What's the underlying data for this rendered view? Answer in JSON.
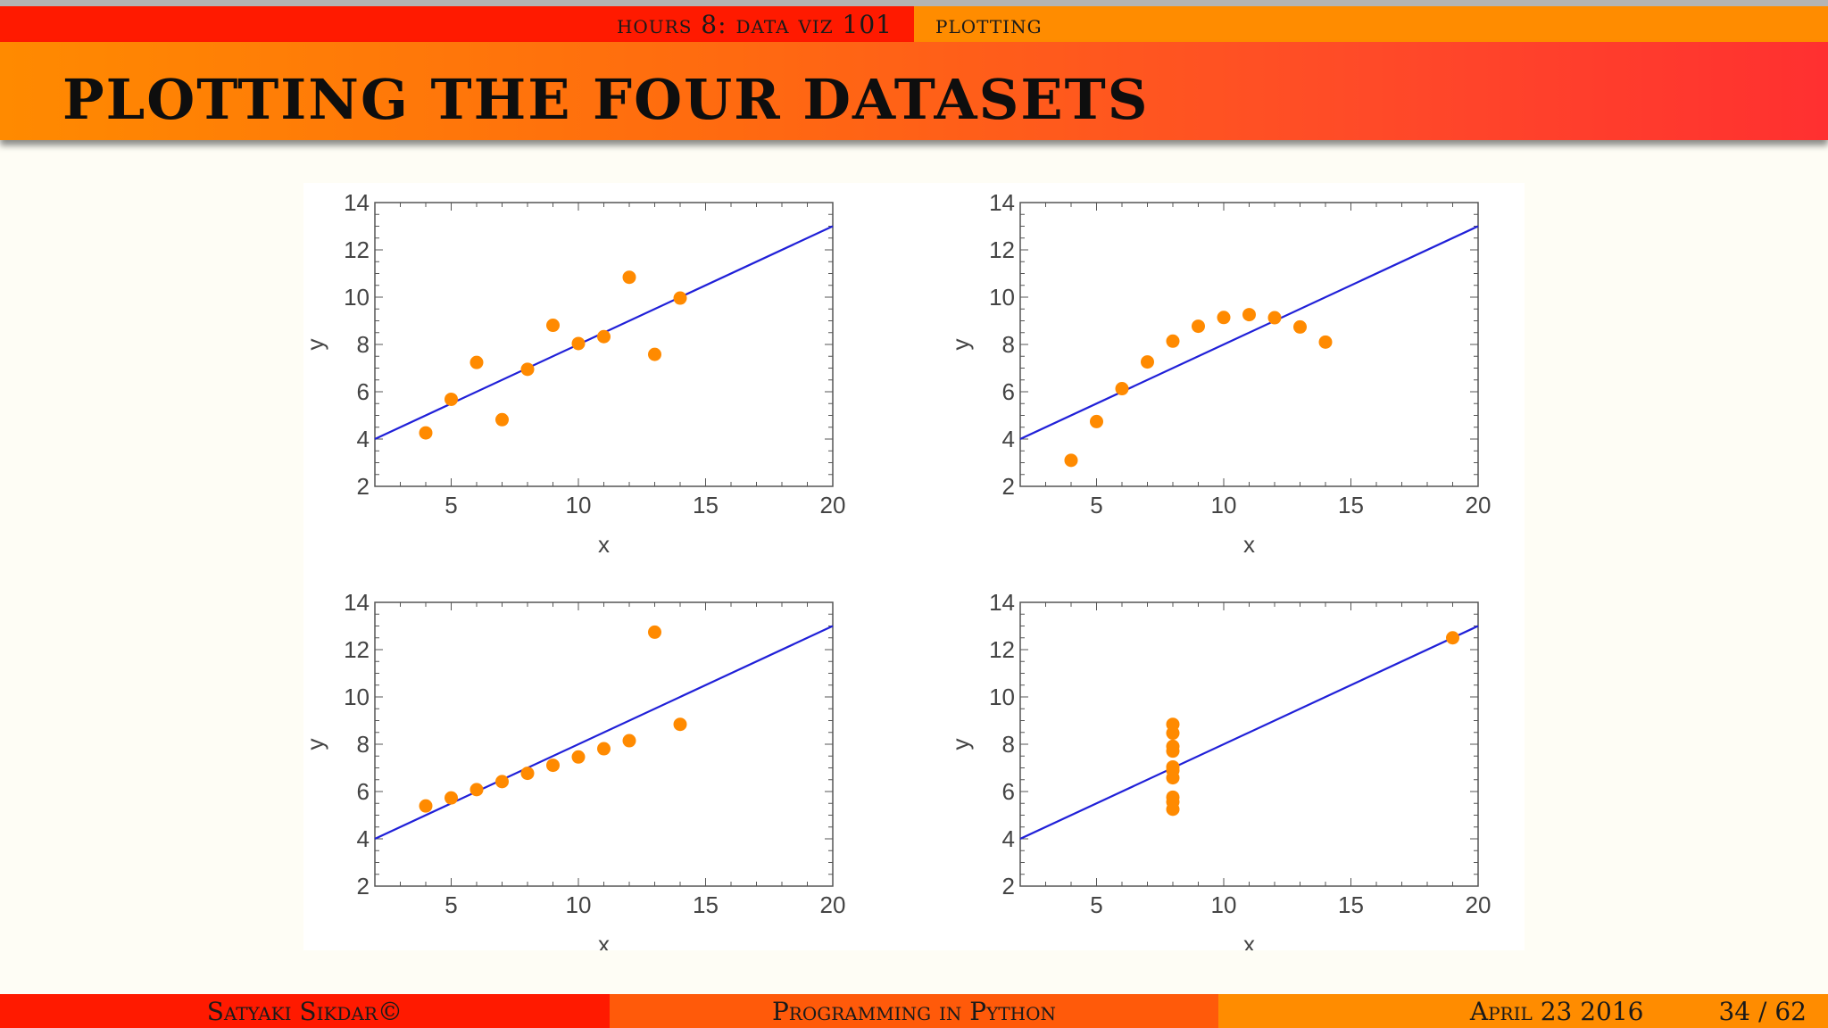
{
  "nav": {
    "left": "hours 8: data viz 101",
    "right": "plotting"
  },
  "slide": {
    "title": "PLOTTING THE FOUR DATASETS"
  },
  "footer": {
    "author": "Satyaki Sikdar©",
    "course": "Programming in Python",
    "date": "April 23 2016",
    "page": "34 / 62"
  },
  "colors": {
    "points": "#ff8a00",
    "line": "#2020d8",
    "nav_red": "#ff1a00",
    "nav_orange": "#ff8c00"
  },
  "chart_data": [
    {
      "type": "scatter",
      "xlabel": "x",
      "ylabel": "y",
      "xlim": [
        2,
        20
      ],
      "ylim": [
        2,
        14
      ],
      "xticks": [
        5,
        10,
        15,
        20
      ],
      "yticks": [
        2,
        4,
        6,
        8,
        10,
        12,
        14
      ],
      "points": [
        [
          10,
          8.04
        ],
        [
          8,
          6.95
        ],
        [
          13,
          7.58
        ],
        [
          9,
          8.81
        ],
        [
          11,
          8.33
        ],
        [
          14,
          9.96
        ],
        [
          6,
          7.24
        ],
        [
          4,
          4.26
        ],
        [
          12,
          10.84
        ],
        [
          7,
          4.82
        ],
        [
          5,
          5.68
        ]
      ],
      "fit_line": [
        [
          2,
          4.0
        ],
        [
          20,
          13.0
        ]
      ]
    },
    {
      "type": "scatter",
      "xlabel": "x",
      "ylabel": "y",
      "xlim": [
        2,
        20
      ],
      "ylim": [
        2,
        14
      ],
      "xticks": [
        5,
        10,
        15,
        20
      ],
      "yticks": [
        2,
        4,
        6,
        8,
        10,
        12,
        14
      ],
      "points": [
        [
          10,
          9.14
        ],
        [
          8,
          8.14
        ],
        [
          13,
          8.74
        ],
        [
          9,
          8.77
        ],
        [
          11,
          9.26
        ],
        [
          14,
          8.1
        ],
        [
          6,
          6.13
        ],
        [
          4,
          3.1
        ],
        [
          12,
          9.13
        ],
        [
          7,
          7.26
        ],
        [
          5,
          4.74
        ]
      ],
      "fit_line": [
        [
          2,
          4.0
        ],
        [
          20,
          13.0
        ]
      ]
    },
    {
      "type": "scatter",
      "xlabel": "x",
      "ylabel": "y",
      "xlim": [
        2,
        20
      ],
      "ylim": [
        2,
        14
      ],
      "xticks": [
        5,
        10,
        15,
        20
      ],
      "yticks": [
        2,
        4,
        6,
        8,
        10,
        12,
        14
      ],
      "points": [
        [
          10,
          7.46
        ],
        [
          8,
          6.77
        ],
        [
          13,
          12.74
        ],
        [
          9,
          7.11
        ],
        [
          11,
          7.81
        ],
        [
          14,
          8.84
        ],
        [
          6,
          6.08
        ],
        [
          4,
          5.39
        ],
        [
          12,
          8.15
        ],
        [
          7,
          6.42
        ],
        [
          5,
          5.73
        ]
      ],
      "fit_line": [
        [
          2,
          4.0
        ],
        [
          20,
          13.0
        ]
      ]
    },
    {
      "type": "scatter",
      "xlabel": "x",
      "ylabel": "y",
      "xlim": [
        2,
        20
      ],
      "ylim": [
        2,
        14
      ],
      "xticks": [
        5,
        10,
        15,
        20
      ],
      "yticks": [
        2,
        4,
        6,
        8,
        10,
        12,
        14
      ],
      "points": [
        [
          8,
          6.58
        ],
        [
          8,
          5.76
        ],
        [
          8,
          7.71
        ],
        [
          8,
          8.84
        ],
        [
          8,
          8.47
        ],
        [
          8,
          7.04
        ],
        [
          8,
          5.25
        ],
        [
          19,
          12.5
        ],
        [
          8,
          5.56
        ],
        [
          8,
          7.91
        ],
        [
          8,
          6.89
        ]
      ],
      "fit_line": [
        [
          2,
          4.0
        ],
        [
          20,
          13.0
        ]
      ]
    }
  ]
}
